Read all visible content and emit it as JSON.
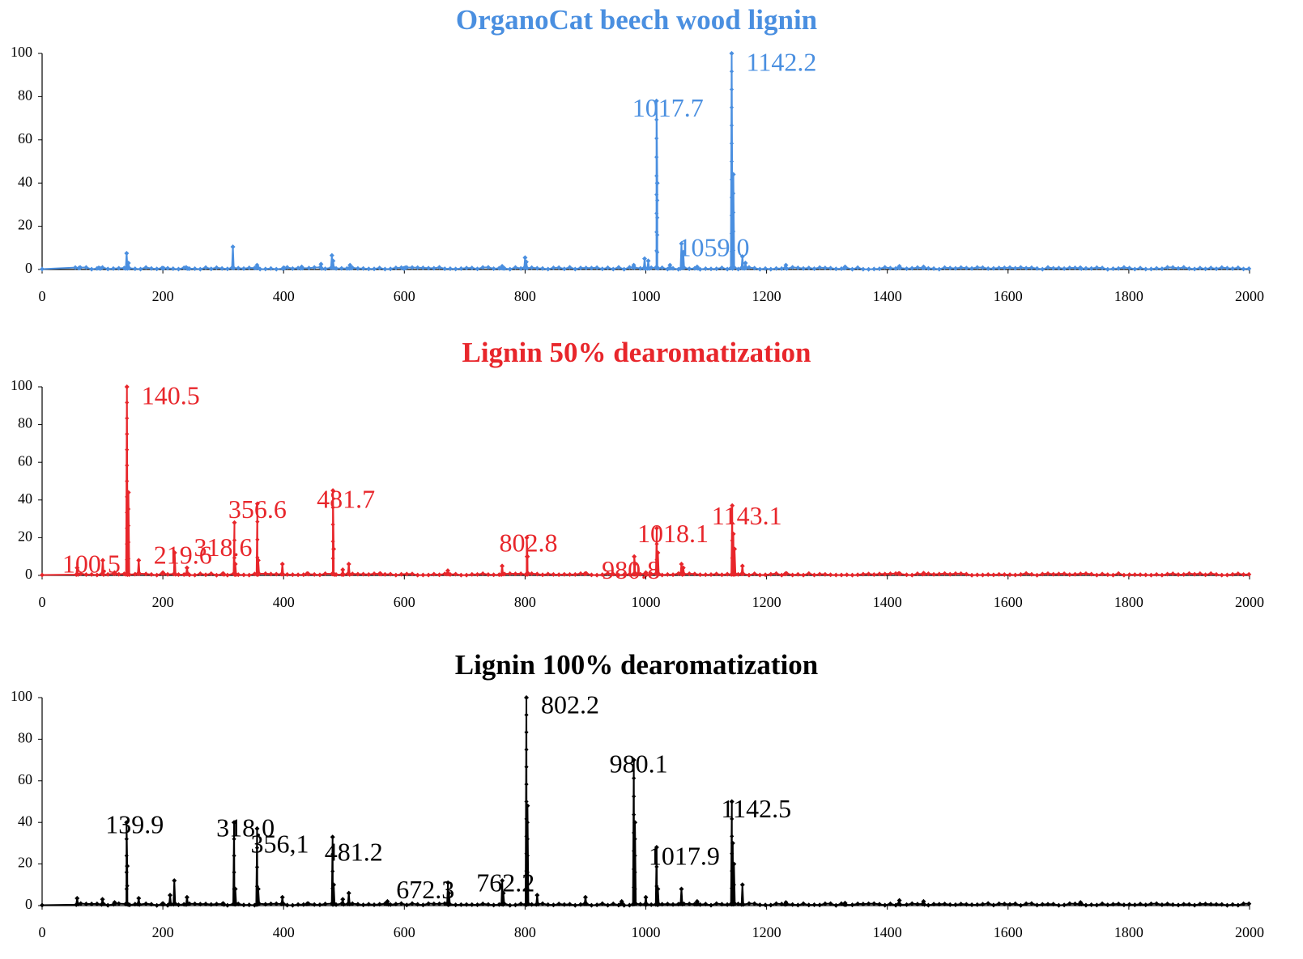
{
  "chart_data": [
    {
      "type": "line",
      "title": "OrganoCat beech wood lignin",
      "color": "#4a8fe0",
      "xlim": [
        0,
        2000
      ],
      "ylim": [
        0,
        100
      ],
      "xticks": [
        0,
        200,
        400,
        600,
        800,
        1000,
        1200,
        1400,
        1600,
        1800,
        2000
      ],
      "yticks": [
        0,
        20,
        40,
        60,
        80,
        100
      ],
      "series": [
        {
          "peaks": [
            [
              62,
              0.8
            ],
            [
              95,
              0.6
            ],
            [
              140,
              7.5
            ],
            [
              143,
              3
            ],
            [
              200,
              0.6
            ],
            [
              240,
              0.5
            ],
            [
              316,
              10.5
            ],
            [
              356,
              2
            ],
            [
              400,
              0.8
            ],
            [
              430,
              1.2
            ],
            [
              462,
              2.5
            ],
            [
              480,
              6.5
            ],
            [
              482,
              4
            ],
            [
              510,
              2
            ],
            [
              600,
              0.5
            ],
            [
              762,
              1.5
            ],
            [
              800,
              5.5
            ],
            [
              802,
              3.5
            ],
            [
              980,
              2
            ],
            [
              998,
              5
            ],
            [
              1004,
              4
            ],
            [
              1017.7,
              78
            ],
            [
              1019,
              40
            ],
            [
              1040,
              2
            ],
            [
              1059,
              12
            ],
            [
              1062,
              8
            ],
            [
              1085,
              1.2
            ],
            [
              1142.2,
              100
            ],
            [
              1145,
              44
            ],
            [
              1160,
              6
            ],
            [
              1165,
              3
            ],
            [
              1232,
              2
            ],
            [
              1330,
              1.2
            ],
            [
              1420,
              1.5
            ],
            [
              1460,
              1.2
            ],
            [
              1720,
              0.8
            ]
          ]
        }
      ],
      "annotations": [
        {
          "text": "1017.7",
          "x": 1017.7,
          "y": 78
        },
        {
          "text": "1142.2",
          "x": 1142.2,
          "y": 100
        },
        {
          "text": "1059.0",
          "x": 1059,
          "y": 12
        }
      ]
    },
    {
      "type": "line",
      "title": "Lignin 50% dearomatization",
      "color": "#e8262b",
      "xlim": [
        0,
        2000
      ],
      "ylim": [
        0,
        100
      ],
      "xticks": [
        0,
        200,
        400,
        600,
        800,
        1000,
        1200,
        1400,
        1600,
        1800,
        2000
      ],
      "yticks": [
        0,
        20,
        40,
        60,
        80,
        100
      ],
      "series": [
        {
          "peaks": [
            [
              58,
              4
            ],
            [
              100.5,
              8
            ],
            [
              120,
              1.5
            ],
            [
              140.5,
              100
            ],
            [
              143,
              44
            ],
            [
              160,
              8
            ],
            [
              200,
              1.5
            ],
            [
              219.6,
              12
            ],
            [
              240,
              4
            ],
            [
              300,
              1
            ],
            [
              318.6,
              28
            ],
            [
              320,
              6
            ],
            [
              356.6,
              38
            ],
            [
              358,
              8
            ],
            [
              398,
              6
            ],
            [
              440,
              1
            ],
            [
              481.7,
              45
            ],
            [
              483,
              14
            ],
            [
              498,
              3
            ],
            [
              508,
              6
            ],
            [
              560,
              1
            ],
            [
              672,
              2.5
            ],
            [
              762,
              5
            ],
            [
              802.8,
              20
            ],
            [
              804,
              10
            ],
            [
              900,
              1
            ],
            [
              980.8,
              10
            ],
            [
              982,
              6
            ],
            [
              1000,
              1.5
            ],
            [
              1018.1,
              25
            ],
            [
              1020,
              12
            ],
            [
              1059,
              6
            ],
            [
              1062,
              4
            ],
            [
              1143.1,
              37
            ],
            [
              1145,
              22
            ],
            [
              1147,
              14
            ],
            [
              1160,
              5
            ],
            [
              1232,
              1
            ],
            [
              1420,
              1
            ],
            [
              1460,
              1.2
            ]
          ]
        }
      ],
      "annotations": [
        {
          "text": "140.5",
          "x": 140.5,
          "y": 100
        },
        {
          "text": "100.5",
          "x": 100.5,
          "y": 8
        },
        {
          "text": "219.6",
          "x": 219.6,
          "y": 12
        },
        {
          "text": "318.6",
          "x": 318.6,
          "y": 28
        },
        {
          "text": "356.6",
          "x": 356.6,
          "y": 38
        },
        {
          "text": "481.7",
          "x": 481.7,
          "y": 45
        },
        {
          "text": "802.8",
          "x": 802.8,
          "y": 20
        },
        {
          "text": "980.8",
          "x": 980.8,
          "y": 10
        },
        {
          "text": "1018.1",
          "x": 1018.1,
          "y": 25
        },
        {
          "text": "1143.1",
          "x": 1143.1,
          "y": 37
        }
      ]
    },
    {
      "type": "line",
      "title": "Lignin 100% dearomatization",
      "color": "#000000",
      "xlim": [
        0,
        2000
      ],
      "ylim": [
        0,
        100
      ],
      "xticks": [
        0,
        200,
        400,
        600,
        800,
        1000,
        1200,
        1400,
        1600,
        1800,
        2000
      ],
      "yticks": [
        0,
        20,
        40,
        60,
        80,
        100
      ],
      "series": [
        {
          "peaks": [
            [
              58,
              3.5
            ],
            [
              100,
              3
            ],
            [
              120,
              1.5
            ],
            [
              139.9,
              40
            ],
            [
              141,
              19
            ],
            [
              160,
              3.5
            ],
            [
              200,
              1
            ],
            [
              212,
              5
            ],
            [
              219,
              12
            ],
            [
              240,
              4
            ],
            [
              300,
              1
            ],
            [
              318.0,
              40
            ],
            [
              320,
              8
            ],
            [
              356.1,
              37
            ],
            [
              358,
              8
            ],
            [
              398,
              4
            ],
            [
              440,
              1
            ],
            [
              481.2,
              33
            ],
            [
              483,
              10
            ],
            [
              498,
              3
            ],
            [
              508,
              6
            ],
            [
              572,
              2
            ],
            [
              672.3,
              11
            ],
            [
              674,
              6
            ],
            [
              762.2,
              12
            ],
            [
              764,
              6
            ],
            [
              802.2,
              100
            ],
            [
              804,
              48
            ],
            [
              820,
              5
            ],
            [
              900,
              4
            ],
            [
              960,
              2
            ],
            [
              980.1,
              70
            ],
            [
              982,
              40
            ],
            [
              1000,
              4
            ],
            [
              1017.9,
              28
            ],
            [
              1020,
              8
            ],
            [
              1059,
              8
            ],
            [
              1085,
              2
            ],
            [
              1142.5,
              50
            ],
            [
              1144,
              30
            ],
            [
              1146,
              20
            ],
            [
              1160,
              10
            ],
            [
              1232,
              1.5
            ],
            [
              1330,
              1.2
            ],
            [
              1420,
              2.5
            ],
            [
              1460,
              2
            ],
            [
              1720,
              1.5
            ]
          ]
        }
      ],
      "annotations": [
        {
          "text": "139.9",
          "x": 139.9,
          "y": 40
        },
        {
          "text": "318.0",
          "x": 318.0,
          "y": 40
        },
        {
          "text": "356,1",
          "x": 356.1,
          "y": 37
        },
        {
          "text": "481.2",
          "x": 481.2,
          "y": 33
        },
        {
          "text": "672.3",
          "x": 672.3,
          "y": 11
        },
        {
          "text": "762.2",
          "x": 762.2,
          "y": 12
        },
        {
          "text": "802.2",
          "x": 802.2,
          "y": 100
        },
        {
          "text": "980.1",
          "x": 980.1,
          "y": 70
        },
        {
          "text": "1017.9",
          "x": 1017.9,
          "y": 28
        },
        {
          "text": "1142.5",
          "x": 1142.5,
          "y": 50
        }
      ]
    }
  ]
}
